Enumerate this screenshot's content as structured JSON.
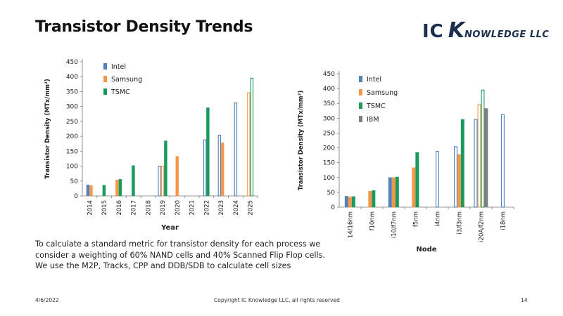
{
  "slide": {
    "title": "Transistor Density Trends",
    "logo_ic": "IC",
    "logo_k": "K",
    "logo_rest": "NOWLEDGE LLC",
    "description": "To calculate a standard metric for transistor density for each process we consider a weighting of 60% NAND cells and 40% Scanned Flip Flop cells. We use the M2P, Tracks, CPP and DDB/SDB to calculate cell sizes",
    "footer_date": "4/6/2022",
    "footer_copyright": "Copyright IC Knowledge LLC, all rights reserved",
    "footer_page": "14"
  },
  "colors": {
    "intel": "#4f81bd",
    "samsung": "#f79646",
    "tsmc": "#1a9a5c",
    "ibm": "#7f7f7f"
  },
  "chart_data": [
    {
      "type": "bar",
      "title": "",
      "xlabel": "Year",
      "ylabel": "Transistor Density (MTx/mm²)",
      "ylim": [
        0,
        450
      ],
      "yticks": [
        0,
        50,
        100,
        150,
        200,
        250,
        300,
        350,
        400,
        450
      ],
      "grid": false,
      "legend_position": "top-left",
      "categories": [
        "2014",
        "2015",
        "2016",
        "2017",
        "2018",
        "2019",
        "2020",
        "2021",
        "2022",
        "2023",
        "2024",
        "2025"
      ],
      "series": [
        {
          "name": "Intel",
          "color_key": "intel",
          "values": [
            37,
            null,
            null,
            null,
            null,
            100,
            null,
            null,
            188,
            204,
            312,
            null
          ],
          "hatched": [
            false,
            false,
            false,
            false,
            false,
            true,
            false,
            false,
            true,
            true,
            true,
            false
          ]
        },
        {
          "name": "Samsung",
          "color_key": "samsung",
          "values": [
            35,
            null,
            54,
            null,
            null,
            100,
            133,
            null,
            null,
            178,
            null,
            346
          ],
          "hatched": [
            false,
            false,
            false,
            false,
            false,
            true,
            false,
            false,
            false,
            false,
            false,
            true
          ]
        },
        {
          "name": "TSMC",
          "color_key": "tsmc",
          "values": [
            null,
            36,
            56,
            102,
            null,
            185,
            null,
            null,
            296,
            null,
            null,
            395
          ],
          "hatched": [
            false,
            false,
            false,
            false,
            false,
            false,
            false,
            false,
            false,
            false,
            false,
            true
          ]
        }
      ]
    },
    {
      "type": "bar",
      "title": "",
      "xlabel": "Node",
      "ylabel": "Transistor Density (MTx/mm²)",
      "ylim": [
        0,
        450
      ],
      "yticks": [
        0,
        50,
        100,
        150,
        200,
        250,
        300,
        350,
        400,
        450
      ],
      "grid": false,
      "legend_position": "top-left",
      "categories": [
        "14/16nm",
        "f10nm",
        "i10/f7nm",
        "f5nm",
        "i4nm",
        "i3/f3nm",
        "i20A/f2nm",
        "i18nm"
      ],
      "series": [
        {
          "name": "Intel",
          "color_key": "intel",
          "values": [
            37,
            null,
            100,
            null,
            188,
            204,
            296,
            312
          ],
          "hatched": [
            false,
            false,
            false,
            false,
            true,
            true,
            true,
            true
          ]
        },
        {
          "name": "Samsung",
          "color_key": "samsung",
          "values": [
            35,
            54,
            100,
            133,
            null,
            178,
            346,
            null
          ],
          "hatched": [
            false,
            false,
            false,
            false,
            false,
            false,
            true,
            false
          ]
        },
        {
          "name": "TSMC",
          "color_key": "tsmc",
          "values": [
            36,
            56,
            102,
            185,
            null,
            296,
            395,
            null
          ],
          "hatched": [
            false,
            false,
            false,
            false,
            false,
            false,
            true,
            false
          ]
        },
        {
          "name": "IBM",
          "color_key": "ibm",
          "values": [
            null,
            null,
            null,
            null,
            null,
            null,
            333,
            null
          ],
          "hatched": [
            false,
            false,
            false,
            false,
            false,
            false,
            false,
            false
          ]
        }
      ]
    }
  ]
}
